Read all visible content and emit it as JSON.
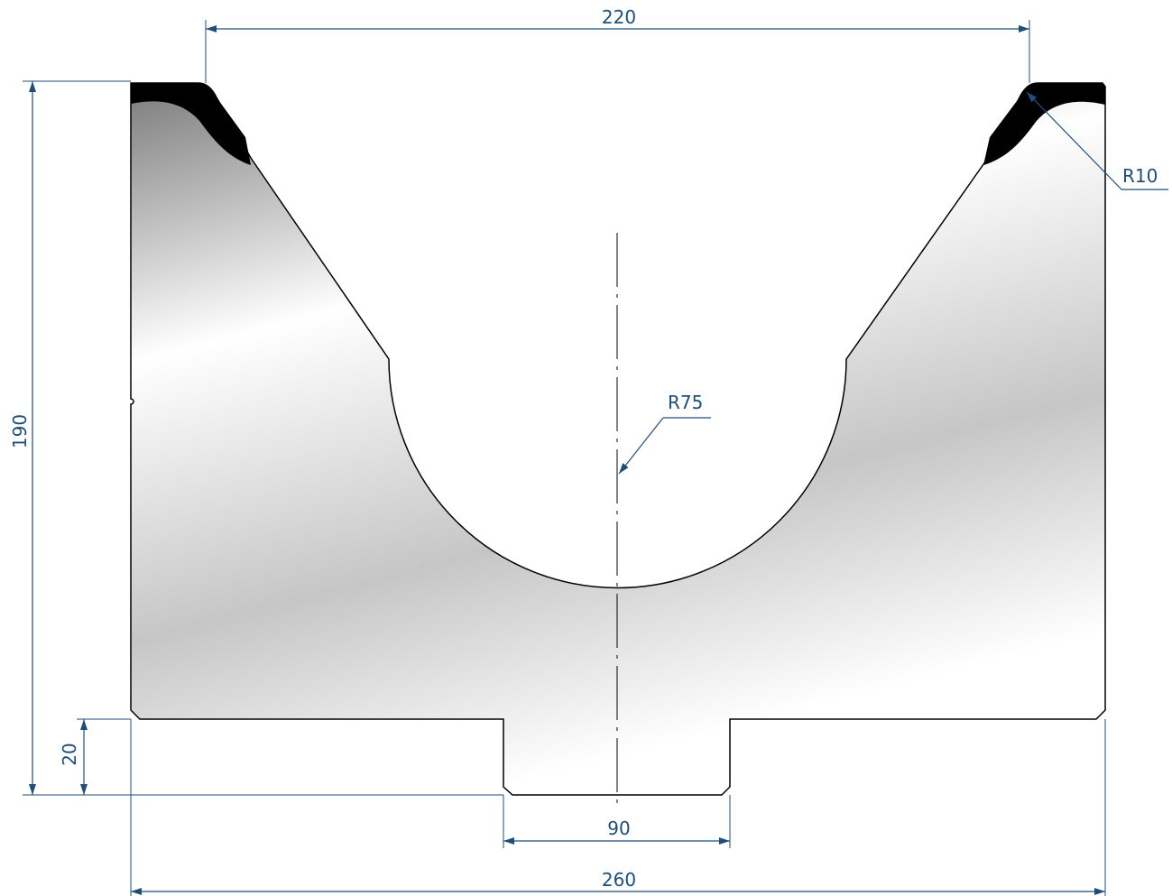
{
  "dimensions": {
    "top_opening": "220",
    "total_height": "190",
    "tang_height": "20",
    "tang_width": "90",
    "total_width": "260",
    "radius_bottom": "R75",
    "radius_edge": "R10"
  },
  "colors": {
    "dimension": "#1f4e79",
    "outline": "#000000",
    "hardened_edge": "#000000",
    "body_light": "#ffffff",
    "body_mid": "#c8c8c8",
    "body_dark": "#7a7a7a"
  }
}
